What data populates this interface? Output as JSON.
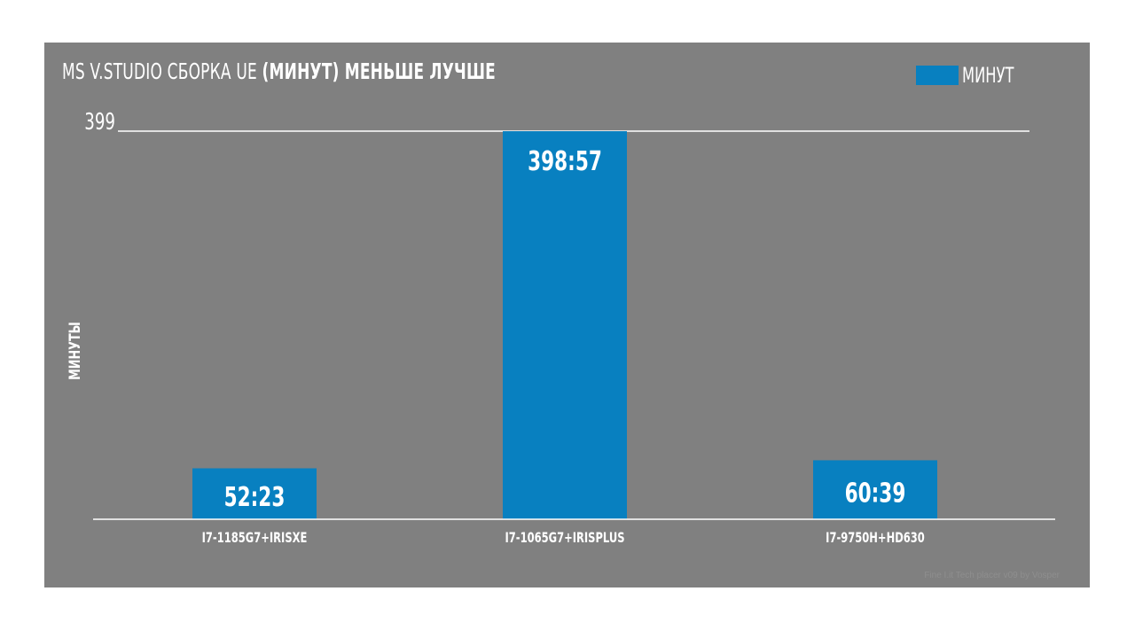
{
  "chart_data": {
    "type": "bar",
    "title_normal": "MS V.STUDIO СБОРКА UE",
    "title_bold": "(МИНУТ) МЕНЬШЕ ЛУЧШЕ",
    "xlabel": "",
    "ylabel": "МИНУТЫ",
    "y_max_label": "399",
    "ylim": [
      0,
      399
    ],
    "categories": [
      "I7-1185G7+IRISXE",
      "I7-1065G7+IRISPLUS",
      "I7-9750H+HD630"
    ],
    "series": [
      {
        "name": "МИНУТ",
        "values": [
          52.38,
          398.95,
          60.65
        ],
        "labels": [
          "52:23",
          "398:57",
          "60:39"
        ]
      }
    ],
    "grid": false,
    "legend_position": "top-right"
  },
  "colors": {
    "panel_background": "#808080",
    "bar": "#0880c0",
    "text": "#ffffff",
    "axis_line": "#ffffff"
  },
  "watermark": "Fine I.it Tech placer v09 by Vosper"
}
